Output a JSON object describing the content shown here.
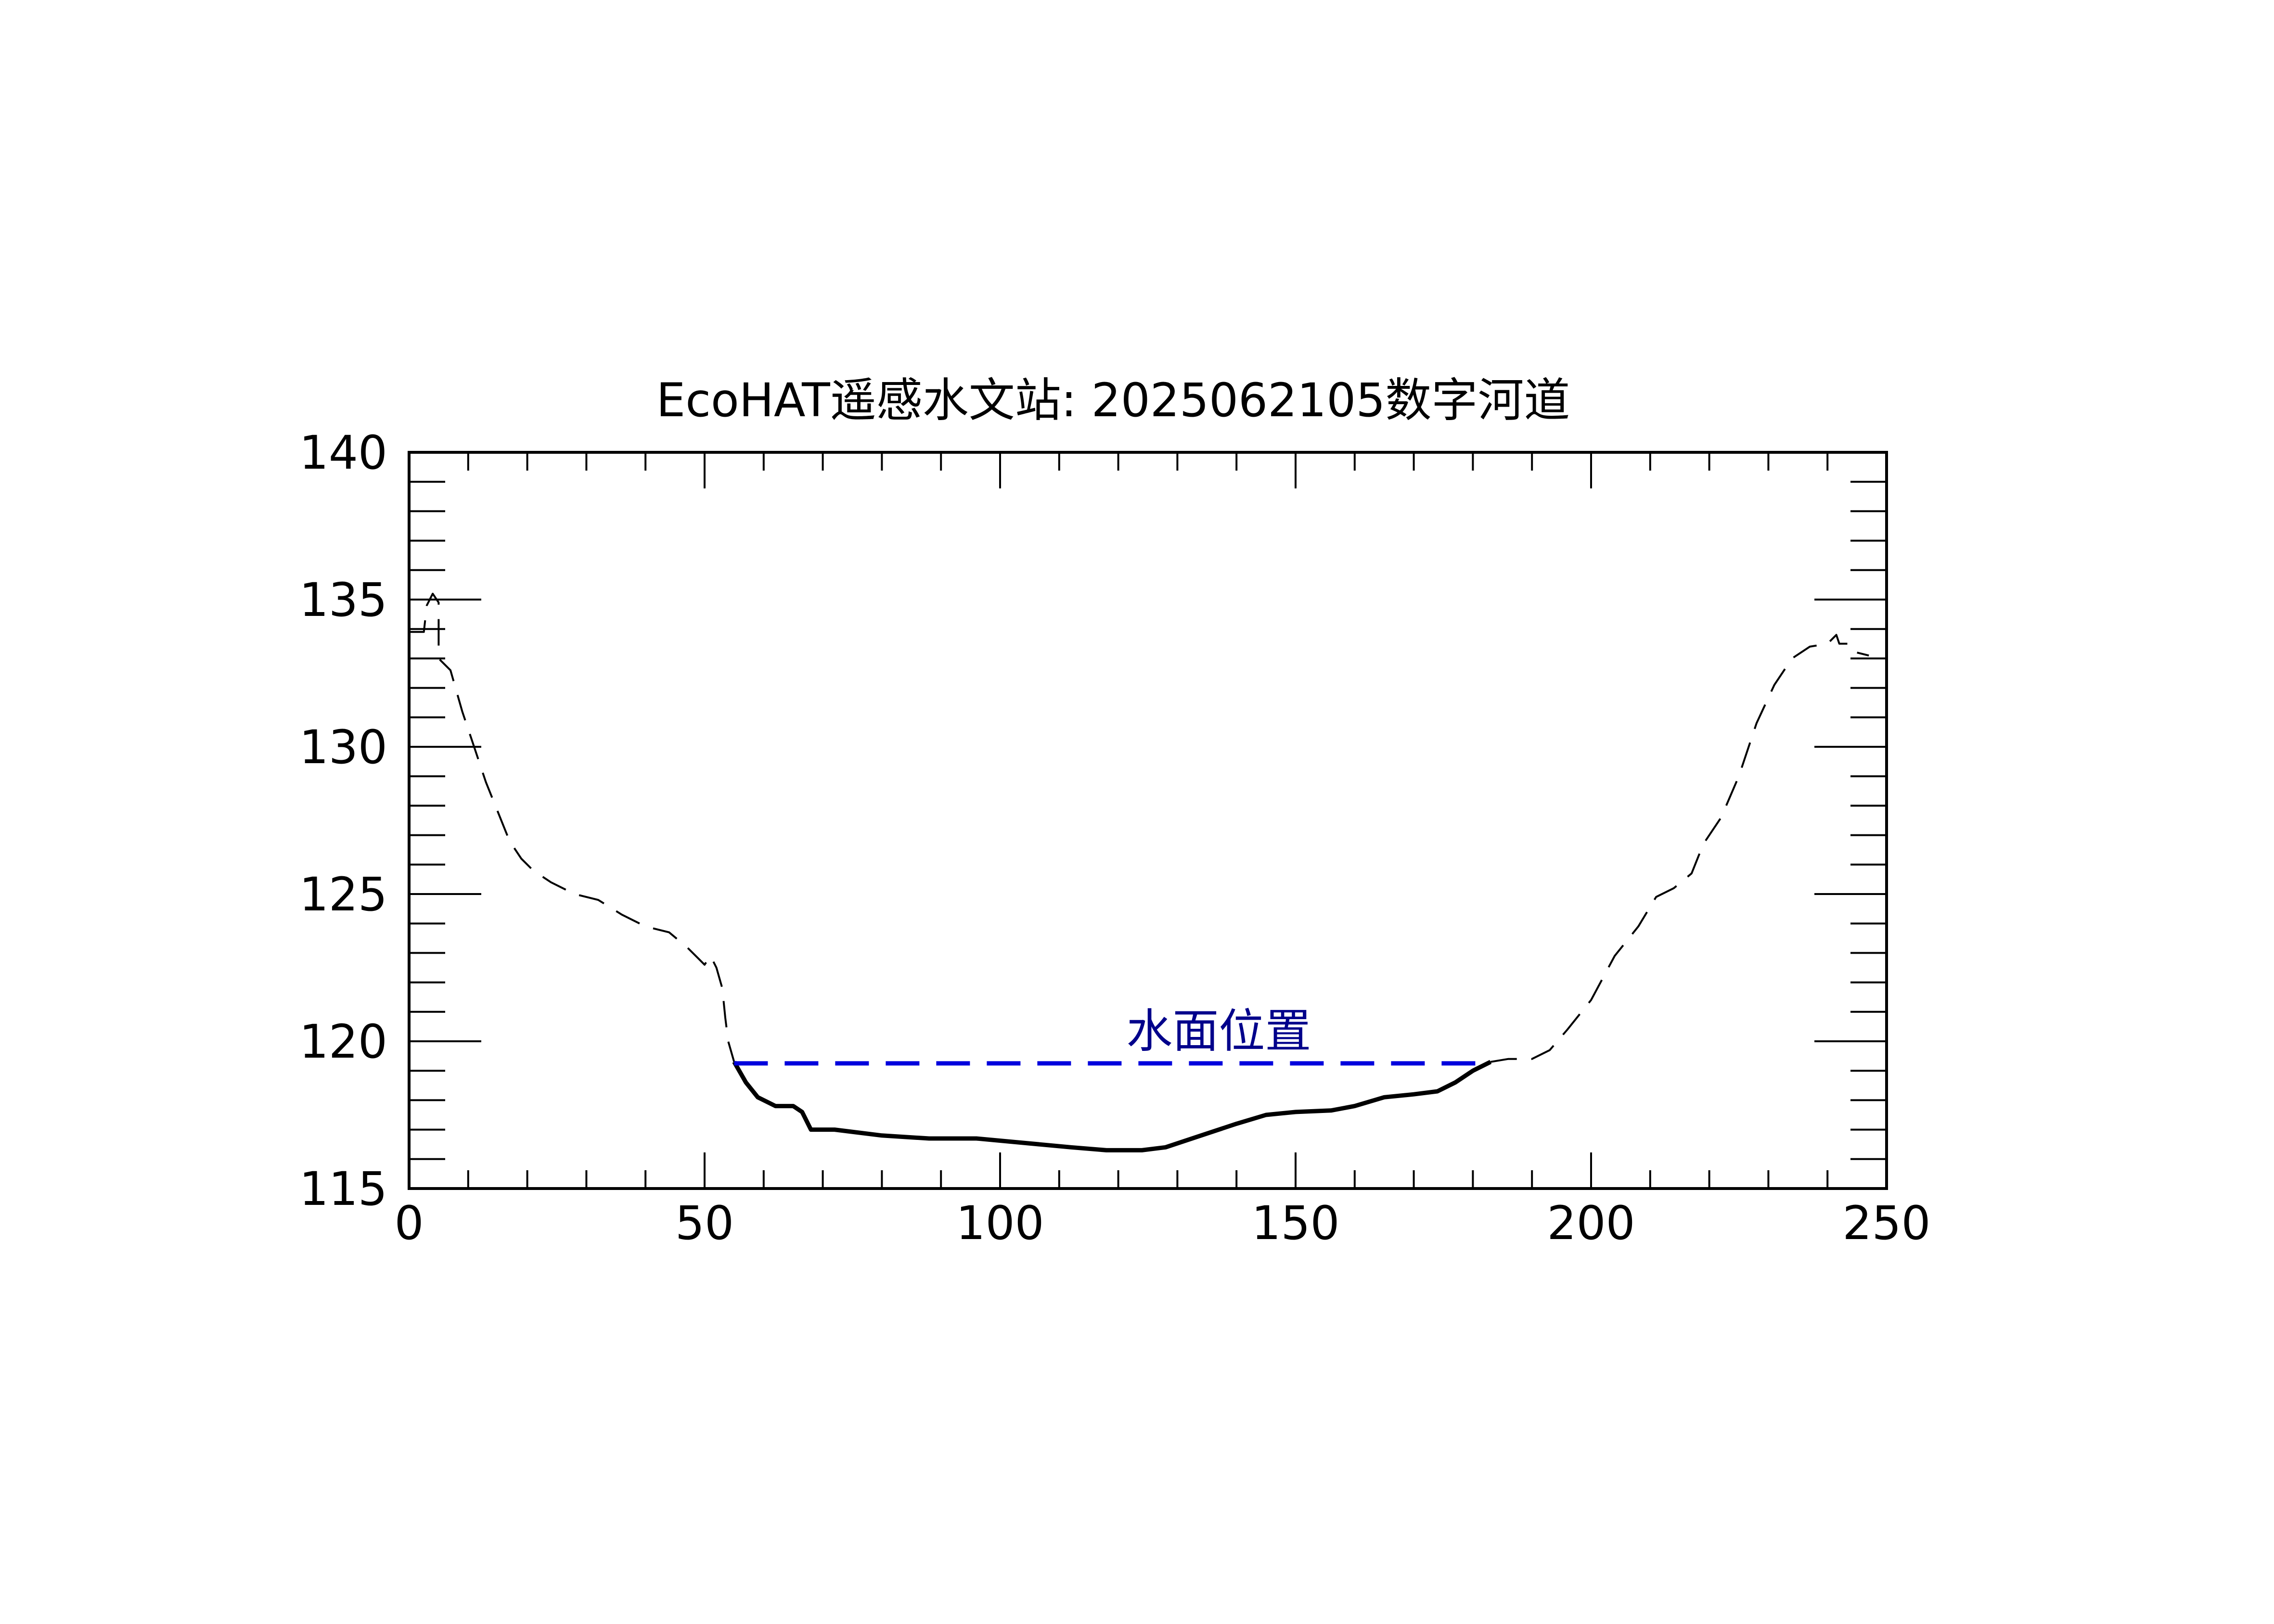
{
  "chart_data": {
    "type": "line",
    "title": "EcoHAT遥感水文站: 2025062105数字河道",
    "xlabel": "",
    "ylabel": "",
    "xlim": [
      0,
      250
    ],
    "ylim": [
      115,
      140
    ],
    "x_ticks": [
      0,
      50,
      100,
      150,
      200,
      250
    ],
    "y_ticks": [
      115,
      120,
      125,
      130,
      135,
      140
    ],
    "grid": false,
    "legend": "none",
    "annotation": {
      "text": "水面位置",
      "x": 137,
      "y": 119.8,
      "color": "#00008b"
    },
    "water_level": {
      "y": 119.25,
      "x_start": 55,
      "x_end": 183,
      "color": "#0000dd",
      "style": "dashed"
    },
    "series": [
      {
        "style": "dashed",
        "color": "#000000",
        "points": [
          [
            0,
            133.9
          ],
          [
            2.5,
            133.9
          ],
          [
            3,
            134.8
          ],
          [
            4,
            135.2
          ],
          [
            5,
            134.9
          ],
          [
            5,
            133.0
          ],
          [
            7,
            132.6
          ],
          [
            9,
            131.2
          ],
          [
            11,
            130.0
          ],
          [
            13,
            128.8
          ],
          [
            15,
            127.8
          ],
          [
            17,
            126.8
          ],
          [
            19,
            126.2
          ],
          [
            21,
            125.8
          ],
          [
            24,
            125.4
          ],
          [
            28,
            125.0
          ],
          [
            32,
            124.8
          ],
          [
            36,
            124.3
          ],
          [
            40,
            123.9
          ],
          [
            44,
            123.7
          ],
          [
            47,
            123.2
          ],
          [
            49,
            122.8
          ],
          [
            50,
            122.6
          ],
          [
            51,
            122.9
          ],
          [
            52,
            122.5
          ],
          [
            53,
            121.8
          ],
          [
            53.5,
            120.8
          ],
          [
            54,
            120.0
          ],
          [
            55,
            119.3
          ]
        ]
      },
      {
        "style": "solid",
        "color": "#000000",
        "points": [
          [
            55,
            119.3
          ],
          [
            57,
            118.6
          ],
          [
            59,
            118.1
          ],
          [
            62,
            117.8
          ],
          [
            65,
            117.8
          ],
          [
            66.5,
            117.6
          ],
          [
            68,
            117.0
          ],
          [
            72,
            117.0
          ],
          [
            80,
            116.8
          ],
          [
            88,
            116.7
          ],
          [
            96,
            116.7
          ],
          [
            104,
            116.55
          ],
          [
            112,
            116.4
          ],
          [
            118,
            116.3
          ],
          [
            124,
            116.3
          ],
          [
            128,
            116.4
          ],
          [
            134,
            116.8
          ],
          [
            140,
            117.2
          ],
          [
            145,
            117.5
          ],
          [
            150,
            117.6
          ],
          [
            156,
            117.65
          ],
          [
            160,
            117.8
          ],
          [
            165,
            118.1
          ],
          [
            170,
            118.2
          ],
          [
            174,
            118.3
          ],
          [
            177,
            118.6
          ],
          [
            180,
            119.0
          ],
          [
            183,
            119.3
          ]
        ]
      },
      {
        "style": "dashed",
        "color": "#000000",
        "points": [
          [
            183,
            119.3
          ],
          [
            186,
            119.4
          ],
          [
            190,
            119.4
          ],
          [
            193,
            119.7
          ],
          [
            196,
            120.4
          ],
          [
            200,
            121.4
          ],
          [
            204,
            122.9
          ],
          [
            208,
            123.9
          ],
          [
            211,
            124.9
          ],
          [
            214,
            125.2
          ],
          [
            217,
            125.7
          ],
          [
            219,
            126.7
          ],
          [
            222,
            127.6
          ],
          [
            225,
            129.0
          ],
          [
            228,
            130.8
          ],
          [
            231,
            132.1
          ],
          [
            234,
            133.0
          ],
          [
            237,
            133.4
          ],
          [
            240,
            133.5
          ],
          [
            241.5,
            133.8
          ],
          [
            242,
            133.5
          ],
          [
            244,
            133.5
          ],
          [
            245,
            133.2
          ],
          [
            247,
            133.1
          ]
        ]
      }
    ]
  }
}
